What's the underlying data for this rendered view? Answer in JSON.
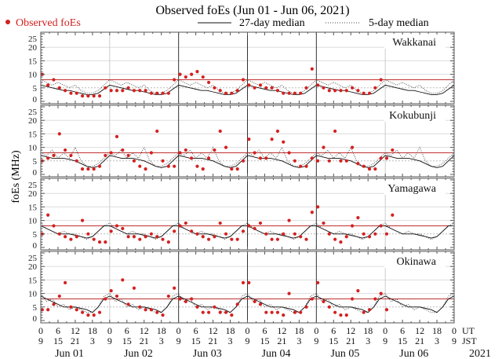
{
  "chart_data": {
    "type": "scatter",
    "title": "Observed foEs (Jun 01 - Jun 06, 2021)",
    "ylabel": "foEs (MHz)",
    "ylim": [
      0,
      25
    ],
    "yticks": [
      "0",
      "5",
      "10",
      "15",
      "20",
      "25"
    ],
    "legend": {
      "placement": "top",
      "observed": "Observed foEs",
      "median27": "27-day median",
      "median5": "5-day median"
    },
    "colors": {
      "observed": "#d42020",
      "median27": "#111111",
      "median5": "#444444",
      "threshold": "#c03030",
      "grid": "#cccccc"
    },
    "threshold_mhz": 8,
    "reference_mhz": 5,
    "x_units": "hours UT from Jun 01 00:00, sampled every 2 h",
    "xticks_ut": [
      "0",
      "6",
      "12",
      "18",
      "0",
      "6",
      "12",
      "18",
      "0",
      "6",
      "12",
      "18",
      "0",
      "6",
      "12",
      "18",
      "0",
      "6",
      "12",
      "18",
      "0",
      "6",
      "12",
      "18",
      "0"
    ],
    "xticks_jst": [
      "9",
      "15",
      "21",
      "3",
      "9",
      "15",
      "21",
      "3",
      "9",
      "15",
      "21",
      "3",
      "9",
      "15",
      "21",
      "3",
      "9",
      "15",
      "21",
      "3",
      "9",
      "15",
      "21",
      "3",
      "9"
    ],
    "ut_label": "UT",
    "jst_label": "JST",
    "days": [
      "Jun 01",
      "Jun 02",
      "Jun 03",
      "Jun 04",
      "Jun 05",
      "Jun 06"
    ],
    "year": "2021",
    "stations": [
      {
        "name": "Wakkanai",
        "median27_daily": [
          6,
          5.5,
          5,
          4.5,
          4,
          4,
          3.5,
          3,
          2.5,
          2.5,
          3,
          4.5
        ],
        "median5_daily": [
          8,
          7,
          6,
          7,
          6,
          5,
          6,
          4,
          3,
          3,
          4,
          6
        ],
        "observed": [
          10,
          6,
          8,
          5,
          4,
          3,
          3,
          2,
          2,
          2,
          2,
          5,
          4,
          4,
          4,
          5,
          4,
          4,
          4,
          3,
          3,
          3,
          3,
          8,
          10,
          9,
          10,
          11,
          9,
          7,
          5,
          4,
          3,
          3,
          4,
          8,
          6,
          5,
          6,
          5,
          5,
          4,
          3,
          3,
          3,
          3,
          5,
          12,
          6,
          5,
          4,
          4,
          4,
          4,
          5,
          4,
          3,
          3,
          5,
          8
        ]
      },
      {
        "name": "Kokubunji",
        "median27_daily": [
          7,
          6.5,
          6,
          6,
          6,
          5.5,
          5,
          4,
          3,
          2.5,
          3,
          5
        ],
        "median5_daily": [
          8,
          7,
          9,
          6,
          8,
          6,
          10,
          5,
          3,
          3,
          4,
          6
        ],
        "observed": [
          5,
          6,
          7,
          15,
          9,
          7,
          5,
          2,
          2,
          2,
          3,
          7,
          8,
          14,
          9,
          7,
          5,
          3,
          2,
          8,
          16,
          5,
          3,
          3,
          8,
          9,
          6,
          3,
          2,
          6,
          9,
          16,
          10,
          2,
          2,
          5,
          13,
          8,
          6,
          6,
          13,
          16,
          12,
          8,
          5,
          3,
          3,
          6,
          5,
          10,
          5,
          16,
          5,
          5,
          10,
          4,
          3,
          2,
          2,
          6,
          6,
          9
        ]
      },
      {
        "name": "Yamagawa",
        "median27_daily": [
          8,
          7,
          6,
          5,
          5,
          5,
          4.5,
          4,
          3.5,
          4,
          6,
          8
        ],
        "median5_daily": [
          9,
          7,
          6,
          5,
          6,
          5,
          5,
          4,
          3,
          4,
          6,
          8
        ],
        "observed": [
          5,
          12,
          8,
          5,
          4,
          3,
          4,
          10,
          5,
          3,
          2,
          2,
          6,
          8,
          7,
          4,
          4,
          3,
          4,
          5,
          4,
          3,
          2,
          6,
          8,
          9,
          6,
          5,
          4,
          3,
          4,
          9,
          5,
          3,
          3,
          6,
          8,
          7,
          9,
          5,
          3,
          3,
          5,
          10,
          5,
          4,
          3,
          13,
          15,
          9,
          5,
          3,
          2,
          4,
          8,
          11,
          5,
          4,
          5,
          8,
          5,
          12
        ]
      },
      {
        "name": "Okinawa",
        "median27_daily": [
          9,
          8,
          7,
          6,
          5,
          5,
          5,
          4.5,
          4,
          3,
          5,
          8
        ],
        "median5_daily": [
          10,
          7,
          8,
          5,
          6,
          4,
          5,
          4,
          3,
          3,
          5,
          9
        ],
        "observed": [
          4,
          4,
          6,
          9,
          14,
          5,
          4,
          3,
          2,
          2,
          3,
          8,
          11,
          9,
          15,
          6,
          12,
          5,
          4,
          4,
          3,
          2,
          9,
          12,
          8,
          7,
          8,
          5,
          3,
          3,
          5,
          3,
          3,
          2,
          6,
          14,
          14,
          7,
          6,
          3,
          3,
          3,
          2,
          10,
          3,
          3,
          5,
          8,
          14,
          7,
          5,
          3,
          2,
          2,
          8,
          11,
          3,
          4,
          8,
          10,
          4
        ]
      }
    ]
  }
}
